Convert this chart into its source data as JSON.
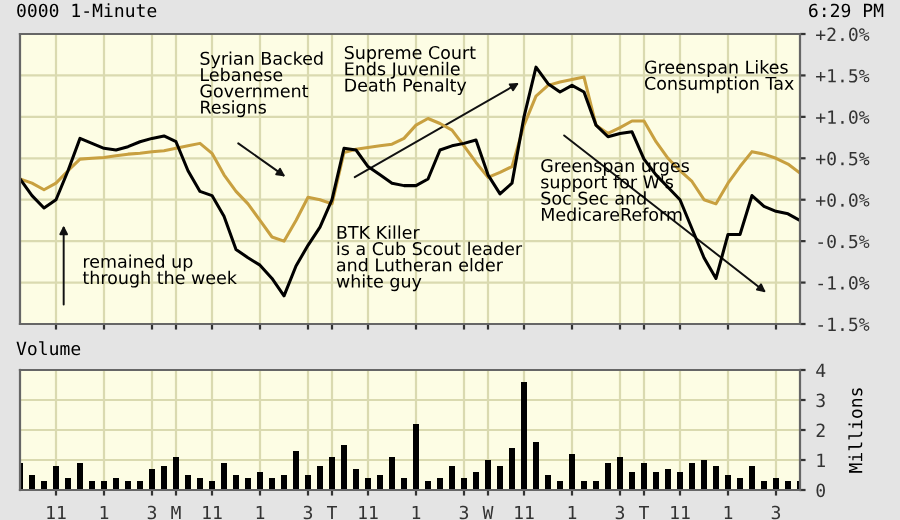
{
  "chart_data": [
    {
      "type": "line",
      "title": "0000 1-Minute",
      "subtitle": "6:29 PM",
      "categories": [
        null,
        null,
        null,
        null,
        null,
        null,
        null,
        null,
        null,
        null,
        null,
        null,
        null,
        null,
        null,
        null,
        null,
        null,
        null,
        null,
        null,
        null,
        null,
        null,
        null,
        null,
        null,
        null,
        null,
        null,
        null,
        null,
        null,
        null,
        null,
        null,
        null,
        null,
        null,
        null,
        null,
        null,
        null,
        null,
        null,
        null,
        null,
        null,
        null,
        null,
        null,
        null,
        null,
        null,
        null,
        null,
        null,
        null,
        null,
        null,
        null,
        null,
        null,
        null,
        null,
        null
      ],
      "ylim": [
        -1.5,
        2.0
      ],
      "yticks": [
        {
          "value": -1.5,
          "label": "-1.5%"
        },
        {
          "value": -1.0,
          "label": "-1.0%"
        },
        {
          "value": -0.5,
          "label": "-0.5%"
        },
        {
          "value": 0,
          "label": "+0.0%"
        },
        {
          "value": 0.5,
          "label": "+0.5%"
        },
        {
          "value": 1.0,
          "label": "+1.0%"
        },
        {
          "value": 1.5,
          "label": "+1.5%"
        },
        {
          "value": 2.0,
          "label": "+2.0%"
        }
      ],
      "tick_labels": "y",
      "grid": true,
      "annotations": [
        "Syrian Backed\nLebanese\nGovernment\nResigns",
        "Supreme Court\nEnds Juvenile\nDeath Penalty",
        "Greenspan Likes\nConsumption Tax",
        "Greenspan urges\nsupport for W's\nSoc Sec and\nMedicareReform",
        "BTK Killer\nis a Cub Scout leader\nand Lutheran elder\nwhite guy",
        "remained up\nthrough the week"
      ],
      "series": [
        {
          "color": "#c8a040",
          "values": [
            0.25,
            0.2,
            0.12,
            0.2,
            0.35,
            0.49,
            0.5,
            0.51,
            0.53,
            0.55,
            0.56,
            0.58,
            0.59,
            0.62,
            0.65,
            0.68,
            0.56,
            0.3,
            0.1,
            -0.05,
            -0.25,
            -0.45,
            -0.5,
            -0.25,
            0.03,
            0.0,
            -0.05,
            0.57,
            0.61,
            0.63,
            0.65,
            0.67,
            0.74,
            0.9,
            0.98,
            0.92,
            0.84,
            0.65,
            0.45,
            0.27,
            0.33,
            0.4,
            0.9,
            1.25,
            1.38,
            1.42,
            1.45,
            1.48,
            0.9,
            0.8,
            0.87,
            0.95,
            0.95,
            0.7,
            0.5,
            0.35,
            0.22,
            0.0,
            -0.05,
            0.2,
            0.4,
            0.58,
            0.55,
            0.5,
            0.43,
            0.32
          ]
        },
        {
          "color": "#000000",
          "values": [
            0.25,
            0.05,
            -0.1,
            0.0,
            0.35,
            0.74,
            0.68,
            0.62,
            0.6,
            0.64,
            0.7,
            0.74,
            0.77,
            0.7,
            0.35,
            0.1,
            0.05,
            -0.2,
            -0.6,
            -0.7,
            -0.79,
            -0.95,
            -1.16,
            -0.8,
            -0.55,
            -0.33,
            0.0,
            0.62,
            0.6,
            0.4,
            0.3,
            0.2,
            0.17,
            0.17,
            0.25,
            0.6,
            0.65,
            0.68,
            0.72,
            0.3,
            0.07,
            0.2,
            1.0,
            1.6,
            1.4,
            1.3,
            1.38,
            1.3,
            0.9,
            0.76,
            0.8,
            0.82,
            0.49,
            0.3,
            0.15,
            0.0,
            -0.35,
            -0.7,
            -0.95,
            -0.42,
            -0.42,
            0.05,
            -0.08,
            -0.14,
            -0.17,
            -0.25
          ]
        }
      ]
    },
    {
      "type": "bar",
      "title": "Volume",
      "ylabel": "Millions",
      "categories": [
        null,
        null,
        null,
        "11",
        null,
        null,
        null,
        "1",
        null,
        null,
        null,
        "3",
        null,
        "M",
        null,
        null,
        "11",
        null,
        null,
        null,
        "1",
        null,
        null,
        null,
        "3",
        null,
        "T",
        null,
        null,
        "11",
        null,
        null,
        null,
        "1",
        null,
        null,
        null,
        "3",
        null,
        "W",
        null,
        null,
        "11",
        null,
        null,
        null,
        "1",
        null,
        null,
        null,
        "3",
        null,
        "T",
        null,
        null,
        "11",
        null,
        null,
        null,
        "1",
        null,
        null,
        null,
        "3",
        null,
        null
      ],
      "ylim": [
        0,
        4
      ],
      "yticks": [
        0,
        1,
        2,
        3,
        4
      ],
      "grid": true,
      "series": [
        {
          "color": "#000000",
          "values": [
            0.9,
            0.5,
            0.3,
            0.8,
            0.4,
            0.9,
            0.3,
            0.3,
            0.4,
            0.3,
            0.3,
            0.7,
            0.8,
            1.1,
            0.5,
            0.4,
            0.3,
            0.9,
            0.5,
            0.4,
            0.6,
            0.4,
            0.5,
            1.3,
            0.5,
            0.8,
            1.1,
            1.5,
            0.7,
            0.4,
            0.5,
            1.1,
            0.4,
            2.2,
            0.3,
            0.4,
            0.8,
            0.4,
            0.6,
            1.0,
            0.8,
            1.4,
            3.6,
            1.6,
            0.5,
            0.3,
            1.2,
            0.3,
            0.3,
            0.9,
            1.1,
            0.6,
            0.9,
            0.6,
            0.7,
            0.6,
            0.9,
            1.0,
            0.8,
            0.5,
            0.4,
            0.8,
            0.3,
            0.4,
            0.3,
            0.3
          ]
        }
      ]
    }
  ]
}
